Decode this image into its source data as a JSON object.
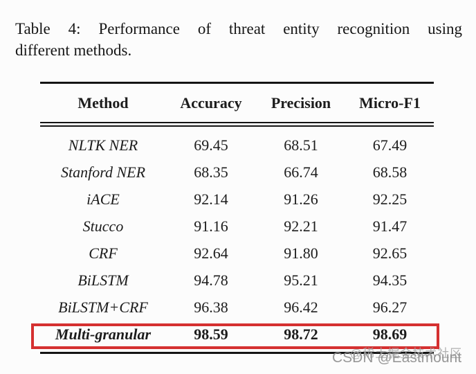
{
  "caption": {
    "line1": "Table 4: Performance of threat entity recognition using",
    "line2": "different methods."
  },
  "table": {
    "headers": [
      "Method",
      "Accuracy",
      "Precision",
      "Micro-F1"
    ],
    "rows": [
      {
        "method": "NLTK NER",
        "values": [
          "69.45",
          "68.51",
          "67.49"
        ]
      },
      {
        "method": "Stanford NER",
        "values": [
          "68.35",
          "66.74",
          "68.58"
        ]
      },
      {
        "method": "iACE",
        "values": [
          "92.14",
          "91.26",
          "92.25"
        ]
      },
      {
        "method": "Stucco",
        "values": [
          "91.16",
          "92.21",
          "91.47"
        ]
      },
      {
        "method": "CRF",
        "values": [
          "92.64",
          "91.80",
          "92.65"
        ]
      },
      {
        "method": "BiLSTM",
        "values": [
          "94.78",
          "95.21",
          "94.35"
        ]
      },
      {
        "method": "BiLSTM+CRF",
        "values": [
          "96.38",
          "96.42",
          "96.27"
        ]
      },
      {
        "method": "Multi-granular",
        "values": [
          "98.59",
          "98.72",
          "98.69"
        ],
        "highlighted": true
      }
    ],
    "highlight_box_color": "#d53030"
  },
  "watermarks": {
    "csdn": "CSDN @Eastmount",
    "community": "@稀土掘金技术社区"
  },
  "colors": {
    "text": "#1c1c1c",
    "rule": "#141414",
    "watermark_csdn": "#8d8d8d",
    "watermark_community": "#a5a5a5"
  }
}
